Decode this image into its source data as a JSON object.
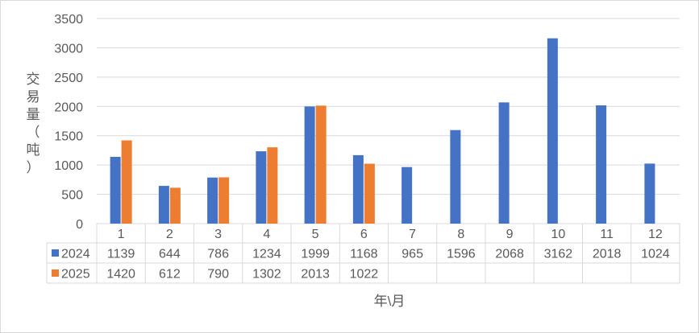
{
  "chart_data": {
    "type": "bar",
    "title": "",
    "xlabel": "年\\月",
    "ylabel_chars": [
      "交",
      "易",
      "量",
      "（",
      "吨",
      "）"
    ],
    "ylim": [
      0,
      3500
    ],
    "yticks": [
      0,
      500,
      1000,
      1500,
      2000,
      2500,
      3000,
      3500
    ],
    "grid": true,
    "legend": "data-table",
    "categories": [
      "1",
      "2",
      "3",
      "4",
      "5",
      "6",
      "7",
      "8",
      "9",
      "10",
      "11",
      "12"
    ],
    "series": [
      {
        "name": "2024",
        "color": "#4472C4",
        "values": [
          1139,
          644,
          786,
          1234,
          1999,
          1168,
          965,
          1596,
          2068,
          3162,
          2018,
          1024
        ]
      },
      {
        "name": "2025",
        "color": "#ED7D31",
        "values": [
          1420,
          612,
          790,
          1302,
          2013,
          1022,
          null,
          null,
          null,
          null,
          null,
          null
        ]
      }
    ]
  }
}
